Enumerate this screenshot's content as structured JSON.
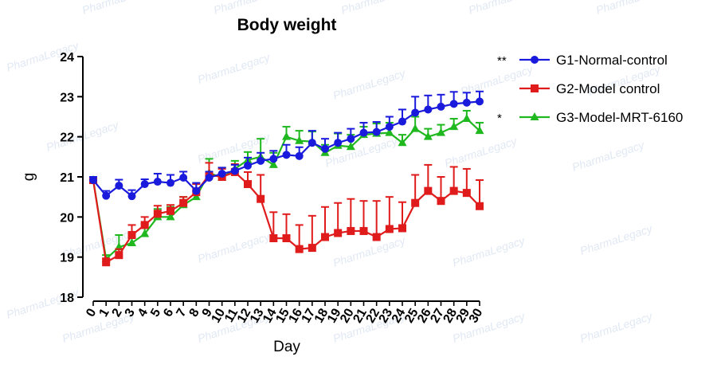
{
  "chart_data": {
    "type": "line",
    "title": "Body weight",
    "xlabel": "Day",
    "ylabel": "g",
    "x": [
      0,
      1,
      2,
      3,
      4,
      5,
      6,
      7,
      8,
      9,
      10,
      11,
      12,
      13,
      14,
      15,
      16,
      17,
      18,
      19,
      20,
      21,
      22,
      23,
      24,
      25,
      26,
      27,
      28,
      29,
      30
    ],
    "xlim": [
      0,
      30
    ],
    "ylim": [
      18,
      24
    ],
    "yticks": [
      18,
      19,
      20,
      21,
      22,
      23,
      24
    ],
    "legend_position": "top-right",
    "series": [
      {
        "name": "G1-Normal-control",
        "significance": "**",
        "color": "#1a1adc",
        "marker": "circle",
        "values": [
          20.92,
          20.53,
          20.78,
          20.52,
          20.82,
          20.88,
          20.85,
          20.98,
          20.65,
          20.98,
          21.08,
          21.15,
          21.28,
          21.4,
          21.45,
          21.55,
          21.52,
          21.85,
          21.7,
          21.85,
          21.95,
          22.1,
          22.12,
          22.25,
          22.38,
          22.6,
          22.68,
          22.75,
          22.82,
          22.85,
          22.88
        ],
        "errors": [
          0.08,
          0.12,
          0.15,
          0.15,
          0.12,
          0.2,
          0.2,
          0.15,
          0.2,
          0.15,
          0.15,
          0.15,
          0.2,
          0.2,
          0.2,
          0.25,
          0.22,
          0.3,
          0.25,
          0.25,
          0.25,
          0.25,
          0.25,
          0.25,
          0.3,
          0.4,
          0.35,
          0.3,
          0.3,
          0.25,
          0.25
        ]
      },
      {
        "name": "G2-Model control",
        "significance": "",
        "color": "#e01b1b",
        "marker": "square",
        "values": [
          20.92,
          18.87,
          19.05,
          19.55,
          19.8,
          20.08,
          20.15,
          20.35,
          20.62,
          21.05,
          21.0,
          21.12,
          20.82,
          20.45,
          19.47,
          19.47,
          19.2,
          19.23,
          19.5,
          19.6,
          19.65,
          19.65,
          19.5,
          19.7,
          19.72,
          20.35,
          20.65,
          20.4,
          20.65,
          20.6,
          20.27
        ],
        "errors": [
          0.08,
          0.1,
          0.15,
          0.25,
          0.2,
          0.2,
          0.15,
          0.15,
          0.2,
          0.3,
          0.2,
          0.2,
          0.3,
          0.6,
          0.65,
          0.6,
          0.6,
          0.8,
          0.75,
          0.75,
          0.8,
          0.75,
          0.9,
          0.8,
          0.65,
          0.7,
          0.65,
          0.6,
          0.6,
          0.6,
          0.65
        ]
      },
      {
        "name": "G3-Model-MRT-6160",
        "significance": "*",
        "color": "#1fb81f",
        "marker": "triangle",
        "values": [
          20.92,
          18.95,
          19.25,
          19.35,
          19.58,
          20.0,
          20.0,
          20.3,
          20.5,
          21.1,
          20.98,
          21.2,
          21.42,
          21.5,
          21.3,
          22.0,
          21.9,
          21.88,
          21.6,
          21.78,
          21.75,
          22.05,
          22.08,
          22.1,
          21.85,
          22.2,
          22.0,
          22.1,
          22.25,
          22.45,
          22.15
        ],
        "errors": [
          0.08,
          0.1,
          0.3,
          0.2,
          0.25,
          0.2,
          0.25,
          0.2,
          0.15,
          0.35,
          0.25,
          0.2,
          0.2,
          0.45,
          0.3,
          0.25,
          0.25,
          0.25,
          0.2,
          0.3,
          0.3,
          0.2,
          0.25,
          0.25,
          0.2,
          0.3,
          0.2,
          0.2,
          0.2,
          0.2,
          0.2
        ]
      }
    ]
  },
  "watermark": {
    "brand_prefix": "Pharma",
    "brand_suffix": "Legacy"
  }
}
